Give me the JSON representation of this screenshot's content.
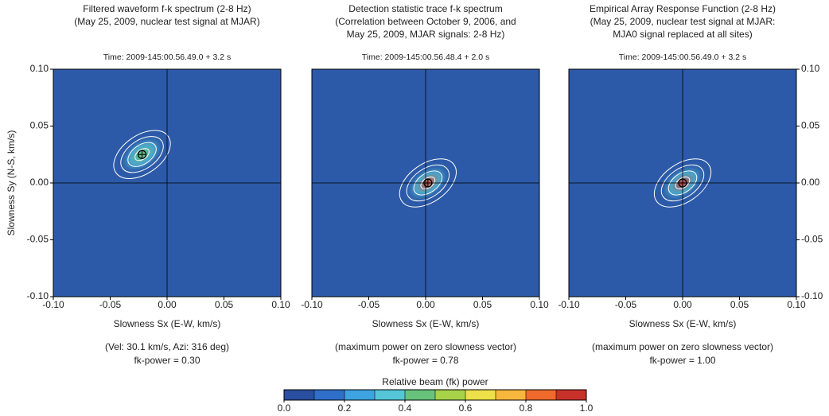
{
  "chart_data": [
    {
      "type": "scatter",
      "title": [
        "Filtered waveform f-k spectrum (2-8 Hz)",
        "(May 25, 2009, nuclear test signal at MJAR)"
      ],
      "time": "Time: 2009-145:00.56.49.0 + 3.2 s",
      "xlabel": "Slowness Sx (E-W, km/s)",
      "ylabel": "Slowness Sy (N-S, km/s)",
      "yaxis_side": "left",
      "x": [
        -0.022
      ],
      "y": [
        0.025
      ],
      "peak_color": "#6cc36f",
      "background": "#2c5aa8",
      "xlim": [
        -0.1,
        0.1
      ],
      "ylim": [
        -0.1,
        0.1
      ],
      "xticks": [
        {
          "value": -0.1,
          "label": "-0.10"
        },
        {
          "value": -0.05,
          "label": "-0.05"
        },
        {
          "value": 0,
          "label": "0.00"
        },
        {
          "value": 0.05,
          "label": "0.05"
        },
        {
          "value": 0.1,
          "label": "0.10"
        }
      ],
      "yticks": [
        {
          "value": -0.1,
          "label": "-0.10"
        },
        {
          "value": -0.05,
          "label": "-0.05"
        },
        {
          "value": 0,
          "label": "0.00"
        },
        {
          "value": 0.05,
          "label": "0.05"
        },
        {
          "value": 0.1,
          "label": "0.10"
        }
      ],
      "notes": [
        "(Vel: 30.1 km/s, Azi: 316 deg)",
        "fk-power = 0.30"
      ]
    },
    {
      "type": "scatter",
      "title": [
        "Detection statistic trace f-k spectrum",
        "(Correlation between October 9, 2006, and",
        "May 25, 2009, MJAR signals: 2-8 Hz)"
      ],
      "time": "Time: 2009-145:00.56.48.4 + 2.0 s",
      "xlabel": "Slowness Sx (E-W, km/s)",
      "yaxis_side": "none",
      "x": [
        0.002
      ],
      "y": [
        0.0
      ],
      "peak_color": "#e0462a",
      "background": "#2c5aa8",
      "xlim": [
        -0.1,
        0.1
      ],
      "ylim": [
        -0.1,
        0.1
      ],
      "xticks": [
        {
          "value": -0.1,
          "label": "-0.10"
        },
        {
          "value": -0.05,
          "label": "-0.05"
        },
        {
          "value": 0,
          "label": "0.00"
        },
        {
          "value": 0.05,
          "label": "0.05"
        },
        {
          "value": 0.1,
          "label": "0.10"
        }
      ],
      "yticks": [
        {
          "value": -0.1,
          "label": "-0.10"
        },
        {
          "value": -0.05,
          "label": "-0.05"
        },
        {
          "value": 0,
          "label": "0.00"
        },
        {
          "value": 0.05,
          "label": "0.05"
        },
        {
          "value": 0.1,
          "label": "0.10"
        }
      ],
      "notes": [
        "(maximum power on zero slowness vector)",
        "fk-power = 0.78"
      ]
    },
    {
      "type": "scatter",
      "title": [
        "Empirical Array Response Function (2-8 Hz)",
        "(May 25, 2009, nuclear test signal at MJAR:",
        "MJA0 signal replaced at all sites)"
      ],
      "time": "Time: 2009-145:00.56.49.0 + 3.2 s",
      "xlabel": "Slowness Sx (E-W, km/s)",
      "yaxis_side": "right",
      "x": [
        0.0
      ],
      "y": [
        0.0
      ],
      "peak_color": "#c8312a",
      "background": "#2c5aa8",
      "xlim": [
        -0.1,
        0.1
      ],
      "ylim": [
        -0.1,
        0.1
      ],
      "xticks": [
        {
          "value": -0.1,
          "label": "-0.10"
        },
        {
          "value": -0.05,
          "label": "-0.05"
        },
        {
          "value": 0,
          "label": "0.00"
        },
        {
          "value": 0.05,
          "label": "0.05"
        },
        {
          "value": 0.1,
          "label": "0.10"
        }
      ],
      "yticks": [
        {
          "value": -0.1,
          "label": "-0.10"
        },
        {
          "value": -0.05,
          "label": "-0.05"
        },
        {
          "value": 0,
          "label": "0.00"
        },
        {
          "value": 0.05,
          "label": "0.05"
        },
        {
          "value": 0.1,
          "label": "0.10"
        }
      ],
      "notes": [
        "(maximum power on zero slowness vector)",
        "fk-power = 1.00"
      ]
    }
  ],
  "colorbar": {
    "title": "Relative beam (fk) power",
    "lim": [
      0,
      1
    ],
    "colors": [
      "#2a4ea0",
      "#2f6fc9",
      "#3ea3e0",
      "#55c6d8",
      "#67c37c",
      "#a8d24a",
      "#ede04a",
      "#f7b63c",
      "#ef6a2c",
      "#c8312a"
    ],
    "ticks": [
      {
        "value": 0,
        "label": "0.0"
      },
      {
        "value": 0.2,
        "label": "0.2"
      },
      {
        "value": 0.4,
        "label": "0.4"
      },
      {
        "value": 0.6,
        "label": "0.6"
      },
      {
        "value": 0.8,
        "label": "0.8"
      },
      {
        "value": 1,
        "label": "1.0"
      }
    ]
  }
}
